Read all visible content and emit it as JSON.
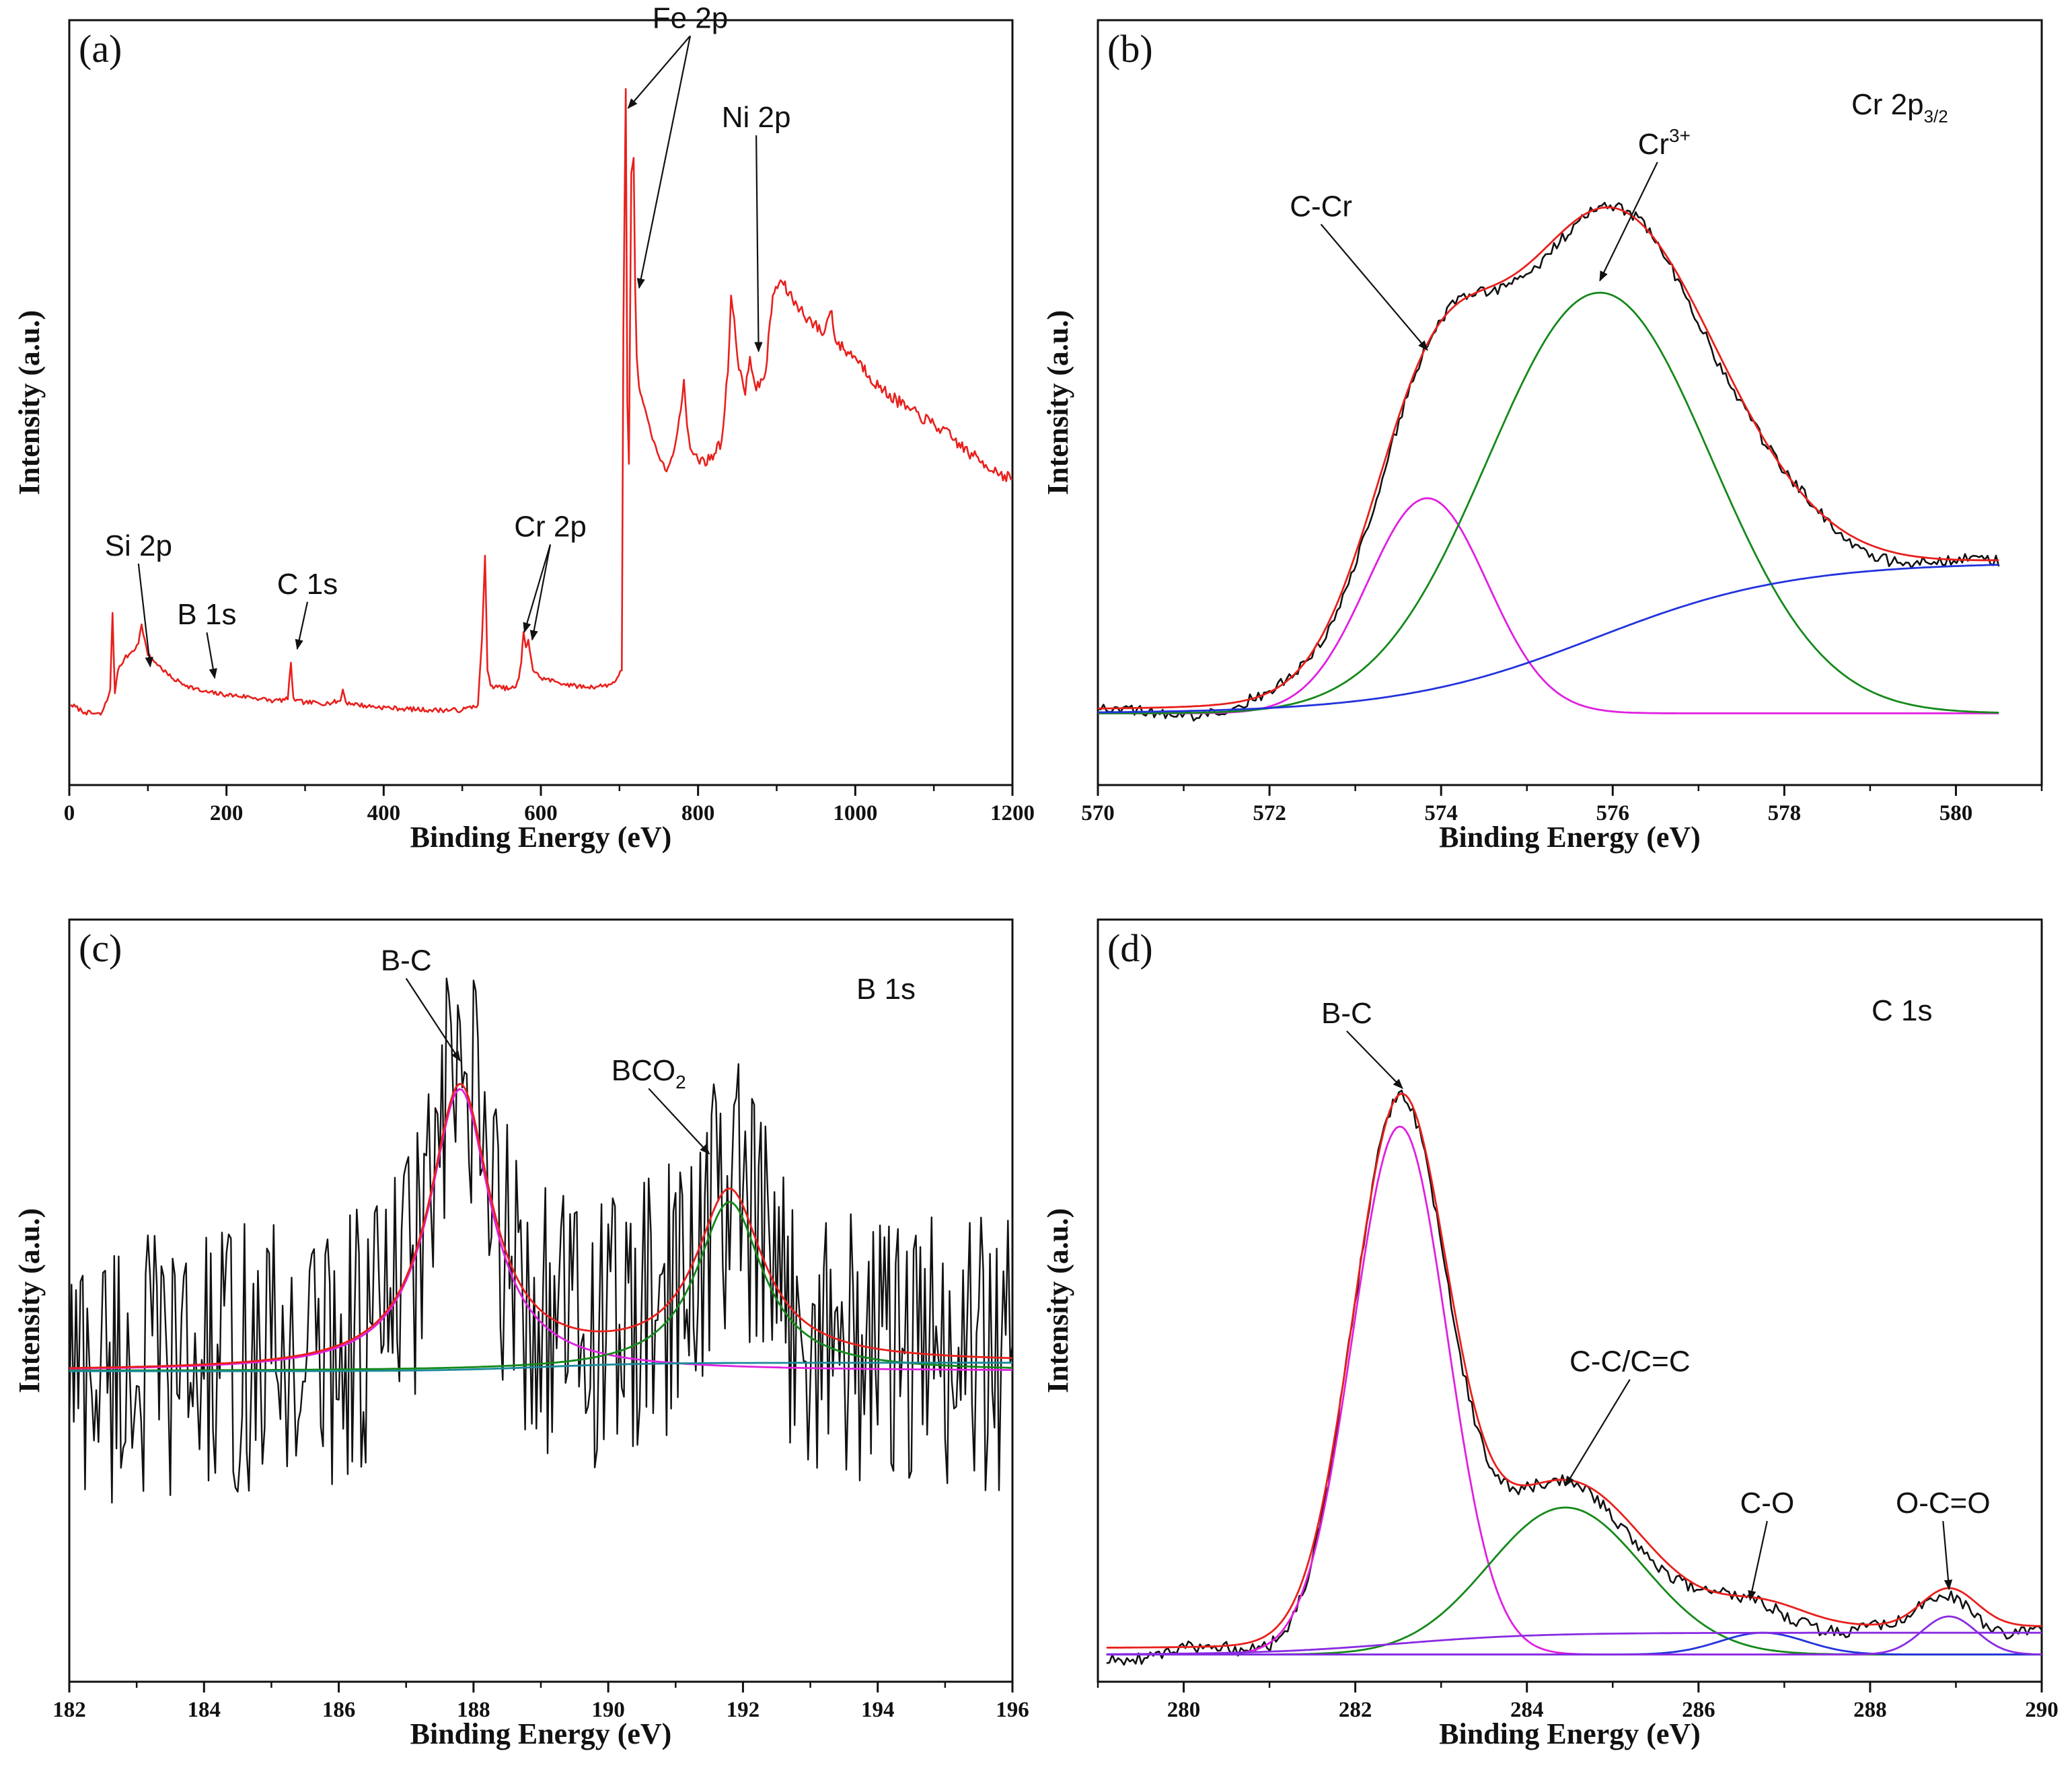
{
  "figure": {
    "colors": {
      "frame": "#111111",
      "survey": "#e8201c",
      "raw": "#111111",
      "fit": "#e8201c",
      "magenta": "#e020e0",
      "green": "#14891a",
      "blue": "#2233dd",
      "purple": "#8a2be2",
      "teal": "#1a8a9a"
    }
  },
  "chart_data": [
    {
      "id": "a",
      "type": "line",
      "panel_label": "(a)",
      "xlabel": "Binding Energy (eV)",
      "ylabel": "Intensity (a.u.)",
      "xlim": [
        0,
        1200
      ],
      "ylim": [
        0,
        1000
      ],
      "xticks": [
        0,
        200,
        400,
        600,
        800,
        1000,
        1200
      ],
      "xtick_labels": [
        "0",
        "200",
        "400",
        "600",
        "800",
        "1000",
        "1200"
      ],
      "minor_step": 100,
      "series": [
        {
          "name": "survey",
          "color": "#e8201c",
          "x": [
            2,
            20,
            40,
            48,
            52,
            55,
            58,
            62,
            70,
            80,
            88,
            92,
            96,
            100,
            110,
            130,
            150,
            170,
            200,
            230,
            260,
            278,
            282,
            285,
            288,
            300,
            330,
            345,
            348,
            352,
            380,
            420,
            460,
            500,
            520,
            525,
            529,
            532,
            536,
            545,
            560,
            568,
            572,
            575,
            578,
            581,
            584,
            590,
            600,
            620,
            640,
            660,
            680,
            690,
            697,
            703,
            705,
            708,
            710,
            712,
            715,
            718,
            720,
            722,
            725,
            730,
            740,
            750,
            760,
            770,
            778,
            782,
            786,
            790,
            800,
            815,
            830,
            838,
            842,
            846,
            850,
            860,
            866,
            872,
            878,
            886,
            895,
            905,
            920,
            940,
            960,
            965,
            970,
            975,
            985,
            1000,
            1030,
            1070,
            1110,
            1150,
            1180,
            1200
          ],
          "y": [
            105,
            95,
            92,
            110,
            125,
            225,
            120,
            150,
            165,
            175,
            185,
            210,
            190,
            170,
            160,
            140,
            130,
            122,
            118,
            115,
            110,
            112,
            160,
            115,
            110,
            108,
            107,
            110,
            125,
            108,
            103,
            100,
            98,
            98,
            105,
            190,
            300,
            150,
            130,
            128,
            126,
            128,
            140,
            160,
            200,
            180,
            190,
            150,
            140,
            135,
            130,
            128,
            130,
            132,
            140,
            150,
            600,
            910,
            500,
            420,
            800,
            820,
            650,
            560,
            520,
            500,
            460,
            430,
            410,
            440,
            490,
            530,
            470,
            440,
            425,
            425,
            450,
            540,
            640,
            610,
            560,
            510,
            560,
            525,
            520,
            540,
            640,
            660,
            635,
            610,
            590,
            610,
            620,
            580,
            570,
            560,
            520,
            490,
            465,
            430,
            410,
            400
          ]
        }
      ],
      "annotations": [
        {
          "text": "Fe 2p",
          "x": 790,
          "y": 990,
          "arrows": [
            [
              711,
              885
            ],
            [
              725,
              650
            ]
          ]
        },
        {
          "text": "Ni 2p",
          "x": 874,
          "y": 860,
          "arrows": [
            [
              877,
              567
            ]
          ]
        },
        {
          "text": "Cr 2p",
          "x": 612,
          "y": 325,
          "arrows": [
            [
              579,
              200
            ],
            [
              589,
              190
            ]
          ]
        },
        {
          "text": "Si 2p",
          "x": 88,
          "y": 300,
          "arrows": [
            [
              103,
              155
            ]
          ]
        },
        {
          "text": "B 1s",
          "x": 175,
          "y": 210,
          "arrows": [
            [
              185,
              140
            ]
          ]
        },
        {
          "text": "C 1s",
          "x": 303,
          "y": 250,
          "arrows": [
            [
              290,
              178
            ]
          ]
        }
      ]
    },
    {
      "id": "b",
      "type": "line",
      "panel_label": "(b)",
      "title": "Cr 2p3/2",
      "title_main": "Cr 2p",
      "title_sub": "3/2",
      "xlabel": "Binding Energy (eV)",
      "ylabel": "Intensity (a.u.)",
      "xlim": [
        570,
        581
      ],
      "ylim": [
        -0.15,
        1.45
      ],
      "xticks": [
        570,
        572,
        574,
        576,
        578,
        580
      ],
      "xtick_labels": [
        "570",
        "572",
        "574",
        "576",
        "578",
        "580"
      ],
      "minor_step": 1,
      "series": [
        {
          "name": "C-Cr",
          "color": "#e020e0",
          "model": "gauss",
          "center": 573.84,
          "height": 0.45,
          "width": 0.7
        },
        {
          "name": "Cr3+",
          "color": "#14891a",
          "model": "gauss",
          "center": 575.85,
          "height": 0.88,
          "width": 1.3
        },
        {
          "name": "background",
          "color": "#2233dd",
          "model": "sigmoid",
          "y0": 0.0,
          "y1": 0.316,
          "mid": 575.8,
          "scale": 1.15
        },
        {
          "name": "envelope",
          "color": "#e8201c",
          "model": "sum",
          "components": [
            "C-Cr",
            "Cr3+",
            "background"
          ]
        },
        {
          "name": "raw",
          "color": "#111111",
          "model": "sum_noise",
          "components": [
            "C-Cr",
            "Cr3+",
            "background"
          ],
          "amplitude": 0.012
        }
      ],
      "x_range": [
        570,
        580.5
      ],
      "annotations": [
        {
          "text": "C-Cr",
          "x": 572.6,
          "y": 1.04,
          "arrows": [
            [
              573.84,
              0.76
            ]
          ]
        },
        {
          "text": "Cr",
          "sup": "3+",
          "x": 576.6,
          "y": 1.17,
          "arrows": [
            [
              575.85,
              0.905
            ]
          ]
        }
      ]
    },
    {
      "id": "c",
      "type": "line",
      "panel_label": "(c)",
      "title": "B 1s",
      "xlabel": "Binding Energy (eV)",
      "ylabel": "Intensity (a.u.)",
      "xlim": [
        182,
        196
      ],
      "ylim": [
        -1.1,
        1.6
      ],
      "xticks": [
        182,
        184,
        186,
        188,
        190,
        192,
        194,
        196
      ],
      "xtick_labels": [
        "182",
        "184",
        "186",
        "188",
        "190",
        "192",
        "194",
        "196"
      ],
      "minor_step": 1,
      "series": [
        {
          "name": "B-C",
          "color": "#e020e0",
          "model": "lorentz",
          "center": 187.8,
          "height": 1.0,
          "width": 0.55
        },
        {
          "name": "BCO2",
          "color": "#14891a",
          "model": "lorentz",
          "center": 191.8,
          "height": 0.6,
          "width": 0.6
        },
        {
          "name": "background",
          "color": "#1a8a9a",
          "model": "sigmoid",
          "y0": 0.0,
          "y1": 0.03,
          "mid": 189,
          "scale": 0.8
        },
        {
          "name": "envelope",
          "color": "#e8201c",
          "model": "sum",
          "components": [
            "B-C",
            "BCO2",
            "background"
          ]
        },
        {
          "name": "raw",
          "color": "#111111",
          "model": "sum_noise",
          "components": [
            "B-C",
            "BCO2",
            "background"
          ],
          "amplitude": 0.5
        }
      ],
      "x_range": [
        182,
        196
      ],
      "annotations": [
        {
          "text": "B-C",
          "x": 187.0,
          "y": 1.42,
          "arrows": [
            [
              187.8,
              1.1
            ]
          ]
        },
        {
          "text": "BCO",
          "sub": "2",
          "x": 190.6,
          "y": 1.03,
          "arrows": [
            [
              191.5,
              0.77
            ]
          ]
        }
      ]
    },
    {
      "id": "d",
      "type": "line",
      "panel_label": "(d)",
      "title": "C 1s",
      "xlabel": "Binding Energy (eV)",
      "ylabel": "Intensity (a.u.)",
      "xlim": [
        279,
        290
      ],
      "ylim": [
        -0.05,
        1.35
      ],
      "xticks": [
        280,
        282,
        284,
        286,
        288,
        290
      ],
      "xtick_labels": [
        "280",
        "282",
        "284",
        "286",
        "288",
        "290"
      ],
      "minor_step": 1,
      "series": [
        {
          "name": "B-C",
          "color": "#e020e0",
          "model": "gauss",
          "center": 282.52,
          "height": 0.97,
          "width": 0.55
        },
        {
          "name": "C-C/C=C",
          "color": "#14891a",
          "model": "gauss",
          "center": 284.45,
          "height": 0.27,
          "width": 0.9
        },
        {
          "name": "C-O",
          "color": "#2233dd",
          "model": "gauss",
          "center": 286.75,
          "height": 0.04,
          "width": 0.5
        },
        {
          "name": "O-C=O",
          "color": "#8a2be2",
          "model": "gauss",
          "center": 288.92,
          "height": 0.07,
          "width": 0.32
        },
        {
          "name": "background",
          "color": "#8a2be2",
          "model": "sigmoid",
          "y0": 0.0,
          "y1": 0.04,
          "mid": 282.5,
          "scale": 0.8
        },
        {
          "name": "envelope",
          "color": "#e8201c",
          "model": "sum",
          "components": [
            "B-C",
            "C-C/C=C",
            "C-O",
            "O-C=O",
            "background"
          ]
        },
        {
          "name": "raw",
          "color": "#111111",
          "model": "sum_noise",
          "components": [
            "B-C",
            "C-C/C=C",
            "C-O",
            "O-C=O",
            "background"
          ],
          "amplitude": 0.012
        }
      ],
      "x_range": [
        279.1,
        290
      ],
      "annotations": [
        {
          "text": "B-C",
          "x": 281.9,
          "y": 1.16,
          "arrows": [
            [
              282.55,
              1.04
            ]
          ]
        },
        {
          "text": "C-C/C=C",
          "x": 285.2,
          "y": 0.52,
          "arrows": [
            [
              284.45,
              0.31
            ]
          ]
        },
        {
          "text": "C-O",
          "x": 286.8,
          "y": 0.26,
          "arrows": [
            [
              286.6,
              0.1
            ]
          ]
        },
        {
          "text": "O-C=O",
          "x": 288.85,
          "y": 0.26,
          "arrows": [
            [
              288.92,
              0.12
            ]
          ]
        }
      ]
    }
  ]
}
